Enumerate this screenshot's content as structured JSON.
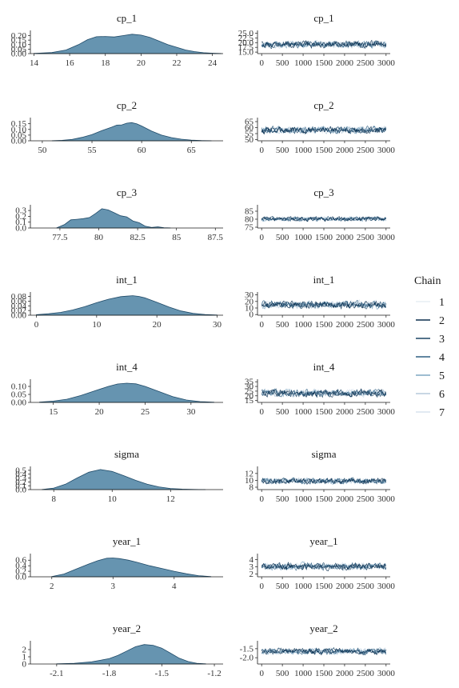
{
  "chart_data": [
    {
      "type": "area",
      "panel": "density",
      "title": "cp_1",
      "xticks": [
        14,
        16,
        18,
        20,
        22,
        24
      ],
      "xlim": [
        13.8,
        24.6
      ],
      "yticks": [
        0.0,
        0.05,
        0.1,
        0.15,
        0.2
      ],
      "ytick_labels": [
        "0.00",
        "0.05",
        "0.10",
        "0.15",
        "0.20"
      ],
      "ylim": [
        0,
        0.24
      ],
      "density": {
        "x": [
          14.0,
          15.0,
          15.8,
          16.5,
          17.0,
          17.5,
          18.0,
          18.5,
          19.0,
          19.5,
          20.0,
          20.5,
          21.0,
          21.5,
          22.0,
          22.5,
          23.0,
          23.5,
          24.0,
          24.5
        ],
        "y": [
          0.002,
          0.012,
          0.04,
          0.1,
          0.155,
          0.188,
          0.19,
          0.185,
          0.2,
          0.215,
          0.205,
          0.18,
          0.14,
          0.1,
          0.07,
          0.04,
          0.022,
          0.01,
          0.004,
          0.001
        ]
      }
    },
    {
      "type": "line",
      "panel": "trace",
      "title": "cp_1",
      "xticks": [
        0,
        500,
        1000,
        1500,
        2000,
        2500,
        3000
      ],
      "xlim": [
        -100,
        3100
      ],
      "yticks": [
        15,
        17.5,
        20,
        22.5,
        25
      ],
      "ytick_labels": [
        "15.0",
        "17.5",
        "20.0",
        "22.5",
        "25.0"
      ],
      "ylim": [
        14.2,
        25.6
      ],
      "trace": {
        "center": 19.0,
        "spread": 1.6,
        "min": 14.5,
        "max": 25.2
      }
    },
    {
      "type": "area",
      "panel": "density",
      "title": "cp_2",
      "xticks": [
        50,
        55,
        60,
        65
      ],
      "xlim": [
        48.8,
        68.2
      ],
      "yticks": [
        0.0,
        0.05,
        0.1,
        0.15
      ],
      "ytick_labels": [
        "0.00",
        "0.05",
        "0.10",
        "0.15"
      ],
      "ylim": [
        0,
        0.19
      ],
      "density": {
        "x": [
          51.0,
          52.0,
          53.0,
          54.0,
          55.0,
          56.0,
          57.0,
          57.5,
          58.0,
          58.5,
          59.0,
          59.5,
          60.0,
          61.0,
          62.0,
          63.0,
          64.0,
          65.0,
          66.0,
          67.0
        ],
        "y": [
          0.001,
          0.004,
          0.012,
          0.03,
          0.055,
          0.09,
          0.12,
          0.138,
          0.14,
          0.155,
          0.16,
          0.15,
          0.13,
          0.085,
          0.05,
          0.028,
          0.014,
          0.006,
          0.002,
          0.001
        ]
      }
    },
    {
      "type": "line",
      "panel": "trace",
      "title": "cp_2",
      "xticks": [
        0,
        500,
        1000,
        1500,
        2000,
        2500,
        3000
      ],
      "xlim": [
        -100,
        3100
      ],
      "yticks": [
        50,
        55,
        60,
        65
      ],
      "ytick_labels": [
        "50",
        "55",
        "60",
        "65"
      ],
      "ylim": [
        49,
        67
      ],
      "trace": {
        "center": 58.0,
        "spread": 2.6,
        "min": 50.5,
        "max": 66.0
      }
    },
    {
      "type": "area",
      "panel": "density",
      "title": "cp_3",
      "xticks": [
        77.5,
        80.0,
        82.5,
        85.0,
        87.5
      ],
      "xlim": [
        75.6,
        88.0
      ],
      "yticks": [
        0.0,
        0.1,
        0.2,
        0.3
      ],
      "ytick_labels": [
        "0.0",
        "0.1",
        "0.2",
        "0.3"
      ],
      "ylim": [
        0,
        0.37
      ],
      "density": {
        "x": [
          77.3,
          77.8,
          78.2,
          78.6,
          79.0,
          79.4,
          79.8,
          80.2,
          80.6,
          81.0,
          81.4,
          81.8,
          82.2,
          82.6,
          83.0,
          83.4,
          83.8,
          84.2,
          84.6
        ],
        "y": [
          0.003,
          0.06,
          0.14,
          0.15,
          0.16,
          0.18,
          0.25,
          0.33,
          0.31,
          0.26,
          0.21,
          0.19,
          0.12,
          0.09,
          0.03,
          0.01,
          0.02,
          0.005,
          0.001
        ]
      }
    },
    {
      "type": "line",
      "panel": "trace",
      "title": "cp_3",
      "xticks": [
        0,
        500,
        1000,
        1500,
        2000,
        2500,
        3000
      ],
      "xlim": [
        -100,
        3100
      ],
      "yticks": [
        75,
        80,
        85
      ],
      "ytick_labels": [
        "75",
        "80",
        "85"
      ],
      "ylim": [
        74.5,
        88
      ],
      "trace": {
        "center": 80.2,
        "spread": 1.2,
        "min": 76.5,
        "max": 87.0
      }
    },
    {
      "type": "area",
      "panel": "density",
      "title": "int_1",
      "xticks": [
        0,
        10,
        20,
        30
      ],
      "xlim": [
        -1,
        31
      ],
      "yticks": [
        0.0,
        0.02,
        0.04,
        0.06,
        0.08
      ],
      "ytick_labels": [
        "0.00",
        "0.02",
        "0.04",
        "0.06",
        "0.08"
      ],
      "ylim": [
        0,
        0.092
      ],
      "density": {
        "x": [
          0,
          2,
          4,
          6,
          8,
          10,
          12,
          14,
          15,
          16,
          17,
          18,
          20,
          22,
          24,
          26,
          28,
          30
        ],
        "y": [
          0.002,
          0.006,
          0.012,
          0.022,
          0.036,
          0.053,
          0.068,
          0.079,
          0.081,
          0.083,
          0.08,
          0.074,
          0.055,
          0.035,
          0.018,
          0.008,
          0.003,
          0.001
        ]
      }
    },
    {
      "type": "line",
      "panel": "trace",
      "title": "int_1",
      "xticks": [
        0,
        500,
        1000,
        1500,
        2000,
        2500,
        3000
      ],
      "xlim": [
        -100,
        3100
      ],
      "yticks": [
        0,
        10,
        20,
        30
      ],
      "ytick_labels": [
        "0",
        "10",
        "20",
        "30"
      ],
      "ylim": [
        -1,
        32
      ],
      "trace": {
        "center": 15.0,
        "spread": 5.0,
        "min": 1.0,
        "max": 30.0
      }
    },
    {
      "type": "area",
      "panel": "density",
      "title": "int_4",
      "xticks": [
        15,
        20,
        25,
        30
      ],
      "xlim": [
        12.5,
        33.5
      ],
      "yticks": [
        0.0,
        0.05,
        0.1
      ],
      "ytick_labels": [
        "0.00",
        "0.05",
        "0.10"
      ],
      "ylim": [
        0,
        0.135
      ],
      "density": {
        "x": [
          13.5,
          15,
          16.5,
          18,
          19.5,
          21,
          22,
          23,
          24,
          25,
          26.5,
          28,
          29.5,
          31,
          32.5
        ],
        "y": [
          0.002,
          0.008,
          0.02,
          0.043,
          0.072,
          0.1,
          0.115,
          0.12,
          0.116,
          0.1,
          0.068,
          0.036,
          0.015,
          0.005,
          0.001
        ]
      }
    },
    {
      "type": "line",
      "panel": "trace",
      "title": "int_4",
      "xticks": [
        0,
        500,
        1000,
        1500,
        2000,
        2500,
        3000
      ],
      "xlim": [
        -100,
        3100
      ],
      "yticks": [
        15,
        20,
        25,
        30,
        35
      ],
      "ytick_labels": [
        "15",
        "20",
        "25",
        "30",
        "35"
      ],
      "ylim": [
        13,
        36
      ],
      "trace": {
        "center": 23.0,
        "spread": 3.4,
        "min": 14.0,
        "max": 34.5
      }
    },
    {
      "type": "area",
      "panel": "density",
      "title": "sigma",
      "xticks": [
        8,
        10,
        12
      ],
      "xlim": [
        7.2,
        13.8
      ],
      "yticks": [
        0.0,
        0.1,
        0.2,
        0.3,
        0.4,
        0.5
      ],
      "ytick_labels": [
        "0.0",
        "0.1",
        "0.2",
        "0.3",
        "0.4",
        "0.5"
      ],
      "ylim": [
        0,
        0.56
      ],
      "density": {
        "x": [
          7.6,
          8.0,
          8.4,
          8.8,
          9.2,
          9.6,
          10.0,
          10.4,
          10.8,
          11.2,
          11.6,
          12.0,
          12.4,
          12.8,
          13.2
        ],
        "y": [
          0.005,
          0.04,
          0.14,
          0.3,
          0.45,
          0.52,
          0.47,
          0.36,
          0.24,
          0.14,
          0.07,
          0.03,
          0.012,
          0.004,
          0.001
        ]
      }
    },
    {
      "type": "line",
      "panel": "trace",
      "title": "sigma",
      "xticks": [
        0,
        500,
        1000,
        1500,
        2000,
        2500,
        3000
      ],
      "xlim": [
        -100,
        3100
      ],
      "yticks": [
        8,
        10,
        12
      ],
      "ytick_labels": [
        "8",
        "10",
        "12"
      ],
      "ylim": [
        7.3,
        13.6
      ],
      "trace": {
        "center": 9.8,
        "spread": 0.75,
        "min": 7.8,
        "max": 13.3
      }
    },
    {
      "type": "area",
      "panel": "density",
      "title": "year_1",
      "xticks": [
        2,
        3,
        4
      ],
      "xlim": [
        1.65,
        4.8
      ],
      "yticks": [
        0.0,
        0.2,
        0.4,
        0.6
      ],
      "ytick_labels": [
        "0.0",
        "0.2",
        "0.4",
        "0.6"
      ],
      "ylim": [
        0,
        0.78
      ],
      "density": {
        "x": [
          2.0,
          2.2,
          2.4,
          2.6,
          2.75,
          2.9,
          3.0,
          3.1,
          3.25,
          3.4,
          3.6,
          3.8,
          4.0,
          4.2,
          4.4,
          4.6
        ],
        "y": [
          0.01,
          0.1,
          0.28,
          0.46,
          0.58,
          0.67,
          0.68,
          0.66,
          0.6,
          0.52,
          0.4,
          0.3,
          0.2,
          0.11,
          0.04,
          0.01
        ]
      }
    },
    {
      "type": "line",
      "panel": "trace",
      "title": "year_1",
      "xticks": [
        0,
        500,
        1000,
        1500,
        2000,
        2500,
        3000
      ],
      "xlim": [
        -100,
        3100
      ],
      "yticks": [
        2,
        3,
        4
      ],
      "ytick_labels": [
        "2",
        "3",
        "4"
      ],
      "ylim": [
        1.6,
        4.6
      ],
      "trace": {
        "center": 3.05,
        "spread": 0.42,
        "min": 1.9,
        "max": 4.3
      }
    },
    {
      "type": "area",
      "panel": "density",
      "title": "year_2",
      "xticks": [
        -2.1,
        -1.8,
        -1.5,
        -1.2
      ],
      "xlim": [
        -2.25,
        -1.15
      ],
      "yticks": [
        0,
        1,
        2
      ],
      "ytick_labels": [
        "0",
        "1",
        "2"
      ],
      "ylim": [
        0,
        3.0
      ],
      "density": {
        "x": [
          -2.1,
          -2.0,
          -1.9,
          -1.8,
          -1.75,
          -1.7,
          -1.65,
          -1.6,
          -1.55,
          -1.5,
          -1.45,
          -1.4,
          -1.35,
          -1.3,
          -1.25
        ],
        "y": [
          0.02,
          0.1,
          0.3,
          0.75,
          1.2,
          1.8,
          2.4,
          2.7,
          2.6,
          2.2,
          1.5,
          0.8,
          0.35,
          0.1,
          0.02
        ]
      }
    },
    {
      "type": "line",
      "panel": "trace",
      "title": "year_2",
      "xticks": [
        0,
        500,
        1000,
        1500,
        2000,
        2500,
        3000
      ],
      "xlim": [
        -100,
        3100
      ],
      "yticks": [
        -2.0,
        -1.5
      ],
      "ytick_labels": [
        "-2.0",
        "-1.5"
      ],
      "ylim": [
        -2.35,
        -1.15
      ],
      "trace": {
        "center": -1.65,
        "spread": 0.15,
        "min": -2.2,
        "max": -1.2
      }
    }
  ],
  "legend": {
    "title": "Chain",
    "items": [
      {
        "label": "1",
        "color": "#e7eef4"
      },
      {
        "label": "2",
        "color": "#0b2f4f"
      },
      {
        "label": "3",
        "color": "#1b4565"
      },
      {
        "label": "4",
        "color": "#2f5f82"
      },
      {
        "label": "5",
        "color": "#7fa7c2"
      },
      {
        "label": "6",
        "color": "#b5cadb"
      },
      {
        "label": "7",
        "color": "#d7e3ee"
      }
    ]
  },
  "density_fill": "#6694b0",
  "density_stroke": "#1f4a68"
}
